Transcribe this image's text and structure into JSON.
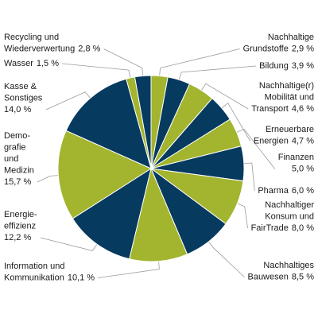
{
  "chart_data": {
    "type": "pie",
    "categories": [
      [
        "Nachhaltige",
        "Grundstoffe"
      ],
      [
        "Bildung"
      ],
      [
        "Nachhaltige(r)",
        "Mobilität und",
        "Transport"
      ],
      [
        "Erneuerbare",
        "Energien"
      ],
      [
        "Finanzen"
      ],
      [
        "Pharma"
      ],
      [
        "Nachhaltiger",
        "Konsum und",
        "FairTrade"
      ],
      [
        "Nachhaltiges",
        "Bauwesen"
      ],
      [
        "Information und",
        "Kommunikation"
      ],
      [
        "Energie-",
        "effizienz"
      ],
      [
        "Demo-",
        "grafie",
        "und",
        "Medizin"
      ],
      [
        "Kasse &",
        "Sonstiges"
      ],
      [
        "Wasser"
      ],
      [
        "Recycling und",
        "Wiederverwertung"
      ]
    ],
    "values": [
      2.9,
      3.9,
      4.6,
      4.7,
      5.0,
      6.0,
      8.0,
      8.5,
      10.1,
      12.2,
      15.7,
      14.0,
      1.5,
      2.8
    ],
    "value_labels": [
      "2,9 %",
      "3,9 %",
      "4,6 %",
      "4,7 %",
      "5,0 %",
      "6,0 %",
      "8,0 %",
      "8,5 %",
      "10,1 %",
      "12,2 %",
      "15,7 %",
      "14,0 %",
      "1,5 %",
      "2,8 %"
    ],
    "colors": [
      "#a3b42f",
      "#063a5f",
      "#a3b42f",
      "#063a5f",
      "#a3b42f",
      "#063a5f",
      "#a3b42f",
      "#063a5f",
      "#a3b42f",
      "#063a5f",
      "#a3b42f",
      "#063a5f",
      "#a3b42f",
      "#063a5f"
    ]
  }
}
